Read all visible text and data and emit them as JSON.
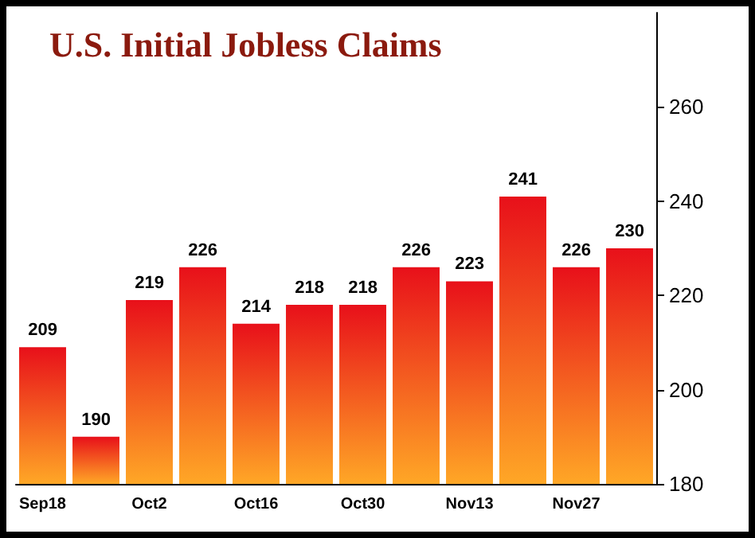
{
  "chart_data": {
    "type": "bar",
    "title": "U.S. Initial Jobless Claims",
    "categories": [
      "Sep18",
      null,
      "Oct2",
      null,
      "Oct16",
      null,
      "Oct30",
      null,
      "Nov13",
      null,
      "Nov27",
      null
    ],
    "values": [
      209,
      190,
      219,
      226,
      214,
      218,
      218,
      226,
      223,
      241,
      226,
      230
    ],
    "color": "#e8101a",
    "ylim": [
      180,
      280
    ],
    "yticks": [
      180,
      200,
      220,
      240,
      260
    ],
    "grid": false,
    "data_labels": true
  }
}
